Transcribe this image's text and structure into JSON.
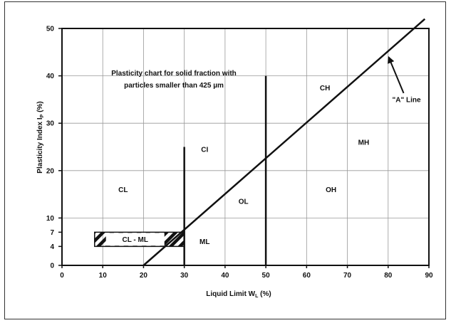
{
  "chart_data": {
    "type": "line",
    "title_lines": [
      "Plasticity chart for solid fraction with",
      "particles smaller than 425 µm"
    ],
    "xlabel": {
      "main": "Liquid Limit W",
      "sub": "L",
      "suffix": " (%)"
    },
    "ylabel": {
      "main": "Plasticity Index I",
      "sub": "P",
      "suffix": " (%)"
    },
    "xlim": [
      0,
      90
    ],
    "ylim": [
      0,
      50
    ],
    "x_ticks": [
      0,
      10,
      20,
      30,
      40,
      50,
      60,
      70,
      80,
      90
    ],
    "y_ticks": [
      0,
      4,
      7,
      10,
      20,
      30,
      40,
      50
    ],
    "grid": true,
    "series": [
      {
        "name": "\"A\" Line",
        "x": [
          20,
          89
        ],
        "y": [
          0,
          52
        ]
      }
    ],
    "boundaries": [
      {
        "x": [
          30,
          30
        ],
        "y": [
          0,
          25
        ]
      },
      {
        "x": [
          50,
          50
        ],
        "y": [
          0,
          40
        ]
      }
    ],
    "hatched_zone": {
      "label": "CL - ML",
      "x": [
        8,
        30
      ],
      "y": [
        4,
        7
      ]
    },
    "regions": [
      {
        "label": "CL",
        "x": 15,
        "y": 16
      },
      {
        "label": "CI",
        "x": 35,
        "y": 24.5
      },
      {
        "label": "ML",
        "x": 35,
        "y": 5
      },
      {
        "label": "OL",
        "x": 44.5,
        "y": 13.5
      },
      {
        "label": "CH",
        "x": 64.5,
        "y": 37.5
      },
      {
        "label": "OH",
        "x": 66,
        "y": 16
      },
      {
        "label": "MH",
        "x": 74,
        "y": 26
      }
    ],
    "annotation": {
      "text": "\"A\" Line",
      "x": 84.5,
      "y": 35,
      "arrow_to": [
        79.8,
        44.5
      ]
    }
  }
}
